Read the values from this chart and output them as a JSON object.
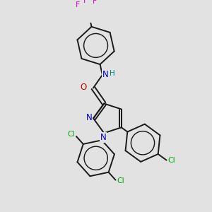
{
  "background_color": "#e2e2e2",
  "bond_color": "#1a1a1a",
  "colors": {
    "N": "#0000dd",
    "O": "#cc0000",
    "Cl": "#00aa00",
    "F": "#dd00dd",
    "H": "#008888",
    "C": "#1a1a1a"
  },
  "figsize": [
    3.0,
    3.0
  ],
  "dpi": 100,
  "lw": 1.4
}
